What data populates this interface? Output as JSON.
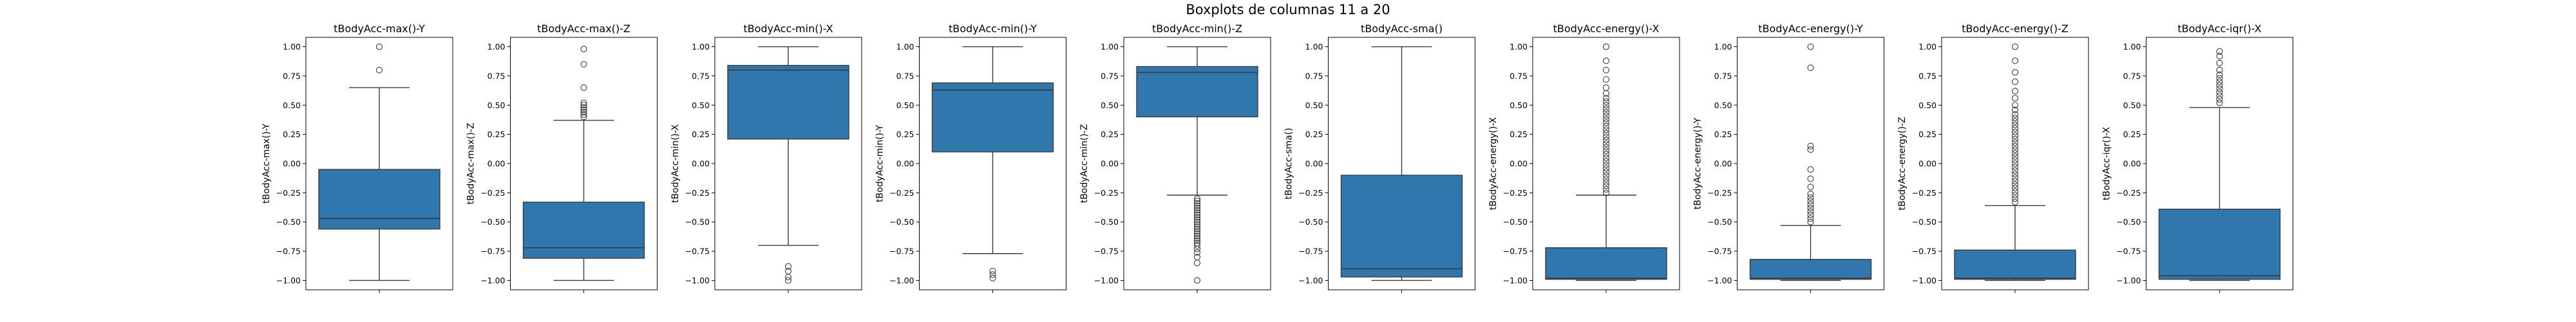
{
  "figure_title": "Boxplots de columnas 11 a 20",
  "chart_data": [
    {
      "type": "box",
      "title": "tBodyAcc-max()-Y",
      "ylabel": "tBodyAcc-max()-Y",
      "ylim": [
        -1.08,
        1.08
      ],
      "yticks": [
        "1.00",
        "0.75",
        "0.50",
        "0.25",
        "0.00",
        "-0.25",
        "-0.50",
        "-0.75",
        "-1.00"
      ],
      "box": {
        "whisker_low": -1.0,
        "q1": -0.56,
        "median": -0.47,
        "q3": -0.05,
        "whisker_high": 0.65
      },
      "outliers": [
        1.0,
        0.8
      ],
      "color": "#2f77ac"
    },
    {
      "type": "box",
      "title": "tBodyAcc-max()-Z",
      "ylabel": "tBodyAcc-max()-Z",
      "ylim": [
        -1.08,
        1.08
      ],
      "yticks": [
        "1.00",
        "0.75",
        "0.50",
        "0.25",
        "0.00",
        "-0.25",
        "-0.50",
        "-0.75",
        "-1.00"
      ],
      "box": {
        "whisker_low": -1.0,
        "q1": -0.81,
        "median": -0.72,
        "q3": -0.33,
        "whisker_high": 0.37
      },
      "outliers": [
        0.98,
        0.85,
        0.65,
        0.52,
        0.5,
        0.48,
        0.46,
        0.44,
        0.42,
        0.4
      ],
      "color": "#2f77ac"
    },
    {
      "type": "box",
      "title": "tBodyAcc-min()-X",
      "ylabel": "tBodyAcc-min()-X",
      "ylim": [
        -1.08,
        1.08
      ],
      "yticks": [
        "1.00",
        "0.75",
        "0.50",
        "0.25",
        "0.00",
        "-0.25",
        "-0.50",
        "-0.75",
        "-1.00"
      ],
      "box": {
        "whisker_low": -0.7,
        "q1": 0.21,
        "median": 0.8,
        "q3": 0.84,
        "whisker_high": 1.0
      },
      "outliers": [
        -0.88,
        -0.92,
        -0.97,
        -1.0
      ],
      "color": "#2f77ac"
    },
    {
      "type": "box",
      "title": "tBodyAcc-min()-Y",
      "ylabel": "tBodyAcc-min()-Y",
      "ylim": [
        -1.08,
        1.08
      ],
      "yticks": [
        "1.00",
        "0.75",
        "0.50",
        "0.25",
        "0.00",
        "-0.25",
        "-0.50",
        "-0.75",
        "-1.00"
      ],
      "box": {
        "whisker_low": -0.77,
        "q1": 0.1,
        "median": 0.63,
        "q3": 0.69,
        "whisker_high": 1.0
      },
      "outliers": [
        -0.92,
        -0.95,
        -0.98
      ],
      "color": "#2f77ac"
    },
    {
      "type": "box",
      "title": "tBodyAcc-min()-Z",
      "ylabel": "tBodyAcc-min()-Z",
      "ylim": [
        -1.08,
        1.08
      ],
      "yticks": [
        "1.00",
        "0.75",
        "0.50",
        "0.25",
        "0.00",
        "-0.25",
        "-0.50",
        "-0.75",
        "-1.00"
      ],
      "box": {
        "whisker_low": -0.27,
        "q1": 0.4,
        "median": 0.78,
        "q3": 0.83,
        "whisker_high": 1.0
      },
      "outliers": [
        -0.3,
        -0.32,
        -0.34,
        -0.36,
        -0.38,
        -0.4,
        -0.42,
        -0.44,
        -0.46,
        -0.48,
        -0.5,
        -0.52,
        -0.54,
        -0.56,
        -0.58,
        -0.6,
        -0.62,
        -0.64,
        -0.66,
        -0.68,
        -0.7,
        -0.73,
        -0.76,
        -0.8,
        -0.85,
        -1.0
      ],
      "color": "#2f77ac"
    },
    {
      "type": "box",
      "title": "tBodyAcc-sma()",
      "ylabel": "tBodyAcc-sma()",
      "ylim": [
        -1.08,
        1.08
      ],
      "yticks": [
        "1.00",
        "0.75",
        "0.50",
        "0.25",
        "0.00",
        "-0.25",
        "-0.50",
        "-0.75",
        "-1.00"
      ],
      "box": {
        "whisker_low": -1.0,
        "q1": -0.97,
        "median": -0.9,
        "q3": -0.1,
        "whisker_high": 1.0
      },
      "outliers": [],
      "color": "#2f77ac"
    },
    {
      "type": "box",
      "title": "tBodyAcc-energy()-X",
      "ylabel": "tBodyAcc-energy()-X",
      "ylim": [
        -1.08,
        1.08
      ],
      "yticks": [
        "1.00",
        "0.75",
        "0.50",
        "0.25",
        "0.00",
        "-0.25",
        "-0.50",
        "-0.75",
        "-1.00"
      ],
      "box": {
        "whisker_low": -1.0,
        "q1": -0.99,
        "median": -0.98,
        "q3": -0.72,
        "whisker_high": -0.27
      },
      "outliers": [
        -0.25,
        -0.22,
        -0.19,
        -0.16,
        -0.13,
        -0.1,
        -0.07,
        -0.04,
        -0.01,
        0.02,
        0.05,
        0.08,
        0.11,
        0.14,
        0.17,
        0.2,
        0.23,
        0.26,
        0.29,
        0.32,
        0.35,
        0.38,
        0.41,
        0.44,
        0.47,
        0.5,
        0.53,
        0.56,
        0.6,
        0.65,
        0.72,
        0.8,
        0.88,
        1.0
      ],
      "color": "#2f77ac"
    },
    {
      "type": "box",
      "title": "tBodyAcc-energy()-Y",
      "ylabel": "tBodyAcc-energy()-Y",
      "ylim": [
        -1.08,
        1.08
      ],
      "yticks": [
        "1.00",
        "0.75",
        "0.50",
        "0.25",
        "0.00",
        "-0.25",
        "-0.50",
        "-0.75",
        "-1.00"
      ],
      "box": {
        "whisker_low": -1.0,
        "q1": -0.99,
        "median": -0.98,
        "q3": -0.82,
        "whisker_high": -0.53
      },
      "outliers": [
        -0.5,
        -0.47,
        -0.44,
        -0.41,
        -0.38,
        -0.35,
        -0.32,
        -0.29,
        -0.26,
        -0.2,
        -0.13,
        -0.05,
        0.12,
        0.15,
        0.82,
        1.0
      ],
      "color": "#2f77ac"
    },
    {
      "type": "box",
      "title": "tBodyAcc-energy()-Z",
      "ylabel": "tBodyAcc-energy()-Z",
      "ylim": [
        -1.08,
        1.08
      ],
      "yticks": [
        "1.00",
        "0.75",
        "0.50",
        "0.25",
        "0.00",
        "-0.25",
        "-0.50",
        "-0.75",
        "-1.00"
      ],
      "box": {
        "whisker_low": -1.0,
        "q1": -0.99,
        "median": -0.98,
        "q3": -0.74,
        "whisker_high": -0.36
      },
      "outliers": [
        -0.33,
        -0.3,
        -0.27,
        -0.24,
        -0.21,
        -0.18,
        -0.15,
        -0.12,
        -0.09,
        -0.06,
        -0.03,
        0.0,
        0.03,
        0.06,
        0.09,
        0.12,
        0.15,
        0.18,
        0.21,
        0.24,
        0.27,
        0.3,
        0.33,
        0.36,
        0.39,
        0.42,
        0.46,
        0.5,
        0.56,
        0.62,
        0.7,
        0.78,
        0.88,
        1.0
      ],
      "color": "#2f77ac"
    },
    {
      "type": "box",
      "title": "tBodyAcc-iqr()-X",
      "ylabel": "tBodyAcc-iqr()-X",
      "ylim": [
        -1.08,
        1.08
      ],
      "yticks": [
        "1.00",
        "0.75",
        "0.50",
        "0.25",
        "0.00",
        "-0.25",
        "-0.50",
        "-0.75",
        "-1.00"
      ],
      "box": {
        "whisker_low": -1.0,
        "q1": -0.99,
        "median": -0.96,
        "q3": -0.39,
        "whisker_high": 0.48
      },
      "outliers": [
        0.52,
        0.55,
        0.58,
        0.61,
        0.64,
        0.67,
        0.7,
        0.73,
        0.76,
        0.8,
        0.86,
        0.92,
        0.96
      ],
      "color": "#2f77ac"
    }
  ]
}
